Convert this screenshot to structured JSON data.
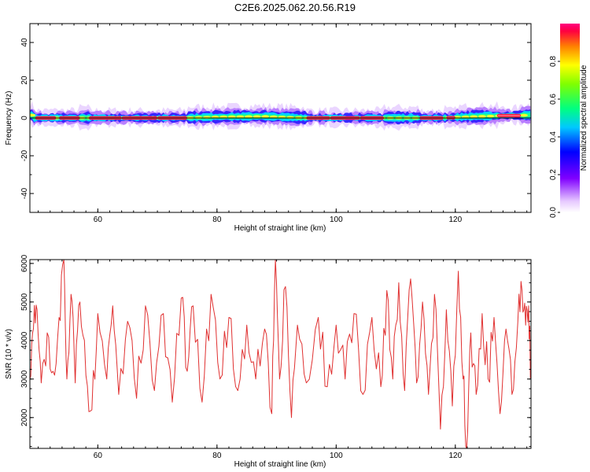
{
  "page": {
    "title": "C2E6.2025.062.20.56.R19"
  },
  "chart_data": [
    {
      "type": "heatmap",
      "xlabel": "Height of straight line (km)",
      "ylabel": "Frequency (Hz)",
      "xlim": [
        48.6,
        132.7
      ],
      "ylim": [
        -50,
        50
      ],
      "xticks": [
        60,
        80,
        100,
        120
      ],
      "yticks": [
        40,
        20,
        0,
        -20,
        -40
      ],
      "reference_line_y": 0,
      "band_center": [
        {
          "x": 49,
          "y": 0
        },
        {
          "x": 60,
          "y": 0
        },
        {
          "x": 74,
          "y": 0
        },
        {
          "x": 80,
          "y": 0.5
        },
        {
          "x": 88,
          "y": 0.8
        },
        {
          "x": 95,
          "y": 0
        },
        {
          "x": 108,
          "y": 0
        },
        {
          "x": 118,
          "y": 0
        },
        {
          "x": 122,
          "y": 0.6
        },
        {
          "x": 128,
          "y": 1.2
        },
        {
          "x": 132.7,
          "y": 1.5
        }
      ],
      "high_amplitude_segments_km": [
        [
          49.5,
          53
        ],
        [
          53.5,
          57
        ],
        [
          58.5,
          64
        ],
        [
          64,
          70
        ],
        [
          70,
          75
        ],
        [
          95,
          99
        ],
        [
          99,
          104
        ],
        [
          104,
          108
        ],
        [
          114,
          118
        ],
        [
          118.5,
          120
        ],
        [
          127,
          131
        ]
      ],
      "colorbar": {
        "label": "Normalized spectral amplitude",
        "range": [
          0.0,
          1.0
        ],
        "ticks": [
          "0.0",
          "0.2",
          "0.4",
          "0.6",
          "0.8"
        ]
      }
    },
    {
      "type": "line",
      "xlabel": "Height of straight line (km)",
      "ylabel": "SNR (10 * v/v)",
      "xlim": [
        48.6,
        132.7
      ],
      "ylim": [
        1200,
        6100
      ],
      "xticks": [
        60,
        80,
        100,
        120
      ],
      "yticks": [
        2000,
        3000,
        4000,
        5000,
        6000
      ],
      "series": [
        {
          "color": "#e03030",
          "anchors": [
            {
              "x": 48.6,
              "y": 3000
            },
            {
              "x": 49.2,
              "y": 4300
            },
            {
              "x": 49.8,
              "y": 4800
            },
            {
              "x": 50.5,
              "y": 2900
            },
            {
              "x": 51.5,
              "y": 4200
            },
            {
              "x": 52.5,
              "y": 3200
            },
            {
              "x": 53.5,
              "y": 4600
            },
            {
              "x": 54.3,
              "y": 6100
            },
            {
              "x": 54.8,
              "y": 3000
            },
            {
              "x": 55.5,
              "y": 5200
            },
            {
              "x": 56.2,
              "y": 2900
            },
            {
              "x": 57.0,
              "y": 5000
            },
            {
              "x": 58.0,
              "y": 3100
            },
            {
              "x": 59.0,
              "y": 2200
            },
            {
              "x": 60.0,
              "y": 4700
            },
            {
              "x": 61.5,
              "y": 3000
            },
            {
              "x": 62.5,
              "y": 4900
            },
            {
              "x": 63.5,
              "y": 2600
            },
            {
              "x": 65.0,
              "y": 4500
            },
            {
              "x": 66.5,
              "y": 2500
            },
            {
              "x": 68.0,
              "y": 4900
            },
            {
              "x": 69.5,
              "y": 2700
            },
            {
              "x": 71.0,
              "y": 4700
            },
            {
              "x": 72.5,
              "y": 2400
            },
            {
              "x": 74.0,
              "y": 5100
            },
            {
              "x": 75.0,
              "y": 3200
            },
            {
              "x": 76.0,
              "y": 4900
            },
            {
              "x": 77.5,
              "y": 2400
            },
            {
              "x": 79.0,
              "y": 5200
            },
            {
              "x": 80.5,
              "y": 3000
            },
            {
              "x": 82.0,
              "y": 4600
            },
            {
              "x": 83.5,
              "y": 2700
            },
            {
              "x": 85.0,
              "y": 4400
            },
            {
              "x": 86.5,
              "y": 3000
            },
            {
              "x": 88.0,
              "y": 4300
            },
            {
              "x": 89.2,
              "y": 2100
            },
            {
              "x": 89.8,
              "y": 6100
            },
            {
              "x": 90.5,
              "y": 3000
            },
            {
              "x": 91.5,
              "y": 5400
            },
            {
              "x": 92.5,
              "y": 2000
            },
            {
              "x": 93.5,
              "y": 4400
            },
            {
              "x": 95.0,
              "y": 2900
            },
            {
              "x": 97.0,
              "y": 4600
            },
            {
              "x": 98.5,
              "y": 2800
            },
            {
              "x": 100.0,
              "y": 4400
            },
            {
              "x": 101.5,
              "y": 3000
            },
            {
              "x": 103.0,
              "y": 4700
            },
            {
              "x": 104.5,
              "y": 2600
            },
            {
              "x": 106.0,
              "y": 4600
            },
            {
              "x": 107.5,
              "y": 2800
            },
            {
              "x": 108.5,
              "y": 5300
            },
            {
              "x": 109.5,
              "y": 3000
            },
            {
              "x": 110.5,
              "y": 5500
            },
            {
              "x": 111.5,
              "y": 2700
            },
            {
              "x": 112.5,
              "y": 5600
            },
            {
              "x": 113.5,
              "y": 2900
            },
            {
              "x": 114.5,
              "y": 5000
            },
            {
              "x": 115.5,
              "y": 2600
            },
            {
              "x": 116.5,
              "y": 5200
            },
            {
              "x": 117.5,
              "y": 1700
            },
            {
              "x": 118.5,
              "y": 4800
            },
            {
              "x": 119.5,
              "y": 2300
            },
            {
              "x": 120.5,
              "y": 5800
            },
            {
              "x": 121.3,
              "y": 3000
            },
            {
              "x": 121.9,
              "y": 1200
            },
            {
              "x": 122.6,
              "y": 4200
            },
            {
              "x": 123.5,
              "y": 2600
            },
            {
              "x": 124.5,
              "y": 4700
            },
            {
              "x": 125.5,
              "y": 3000
            },
            {
              "x": 126.5,
              "y": 4600
            },
            {
              "x": 127.5,
              "y": 2100
            },
            {
              "x": 128.5,
              "y": 4300
            },
            {
              "x": 129.5,
              "y": 2600
            },
            {
              "x": 130.5,
              "y": 4500
            },
            {
              "x": 131.2,
              "y": 5300
            },
            {
              "x": 131.8,
              "y": 4400
            },
            {
              "x": 132.3,
              "y": 4900
            },
            {
              "x": 132.7,
              "y": 3100
            }
          ]
        }
      ]
    }
  ]
}
